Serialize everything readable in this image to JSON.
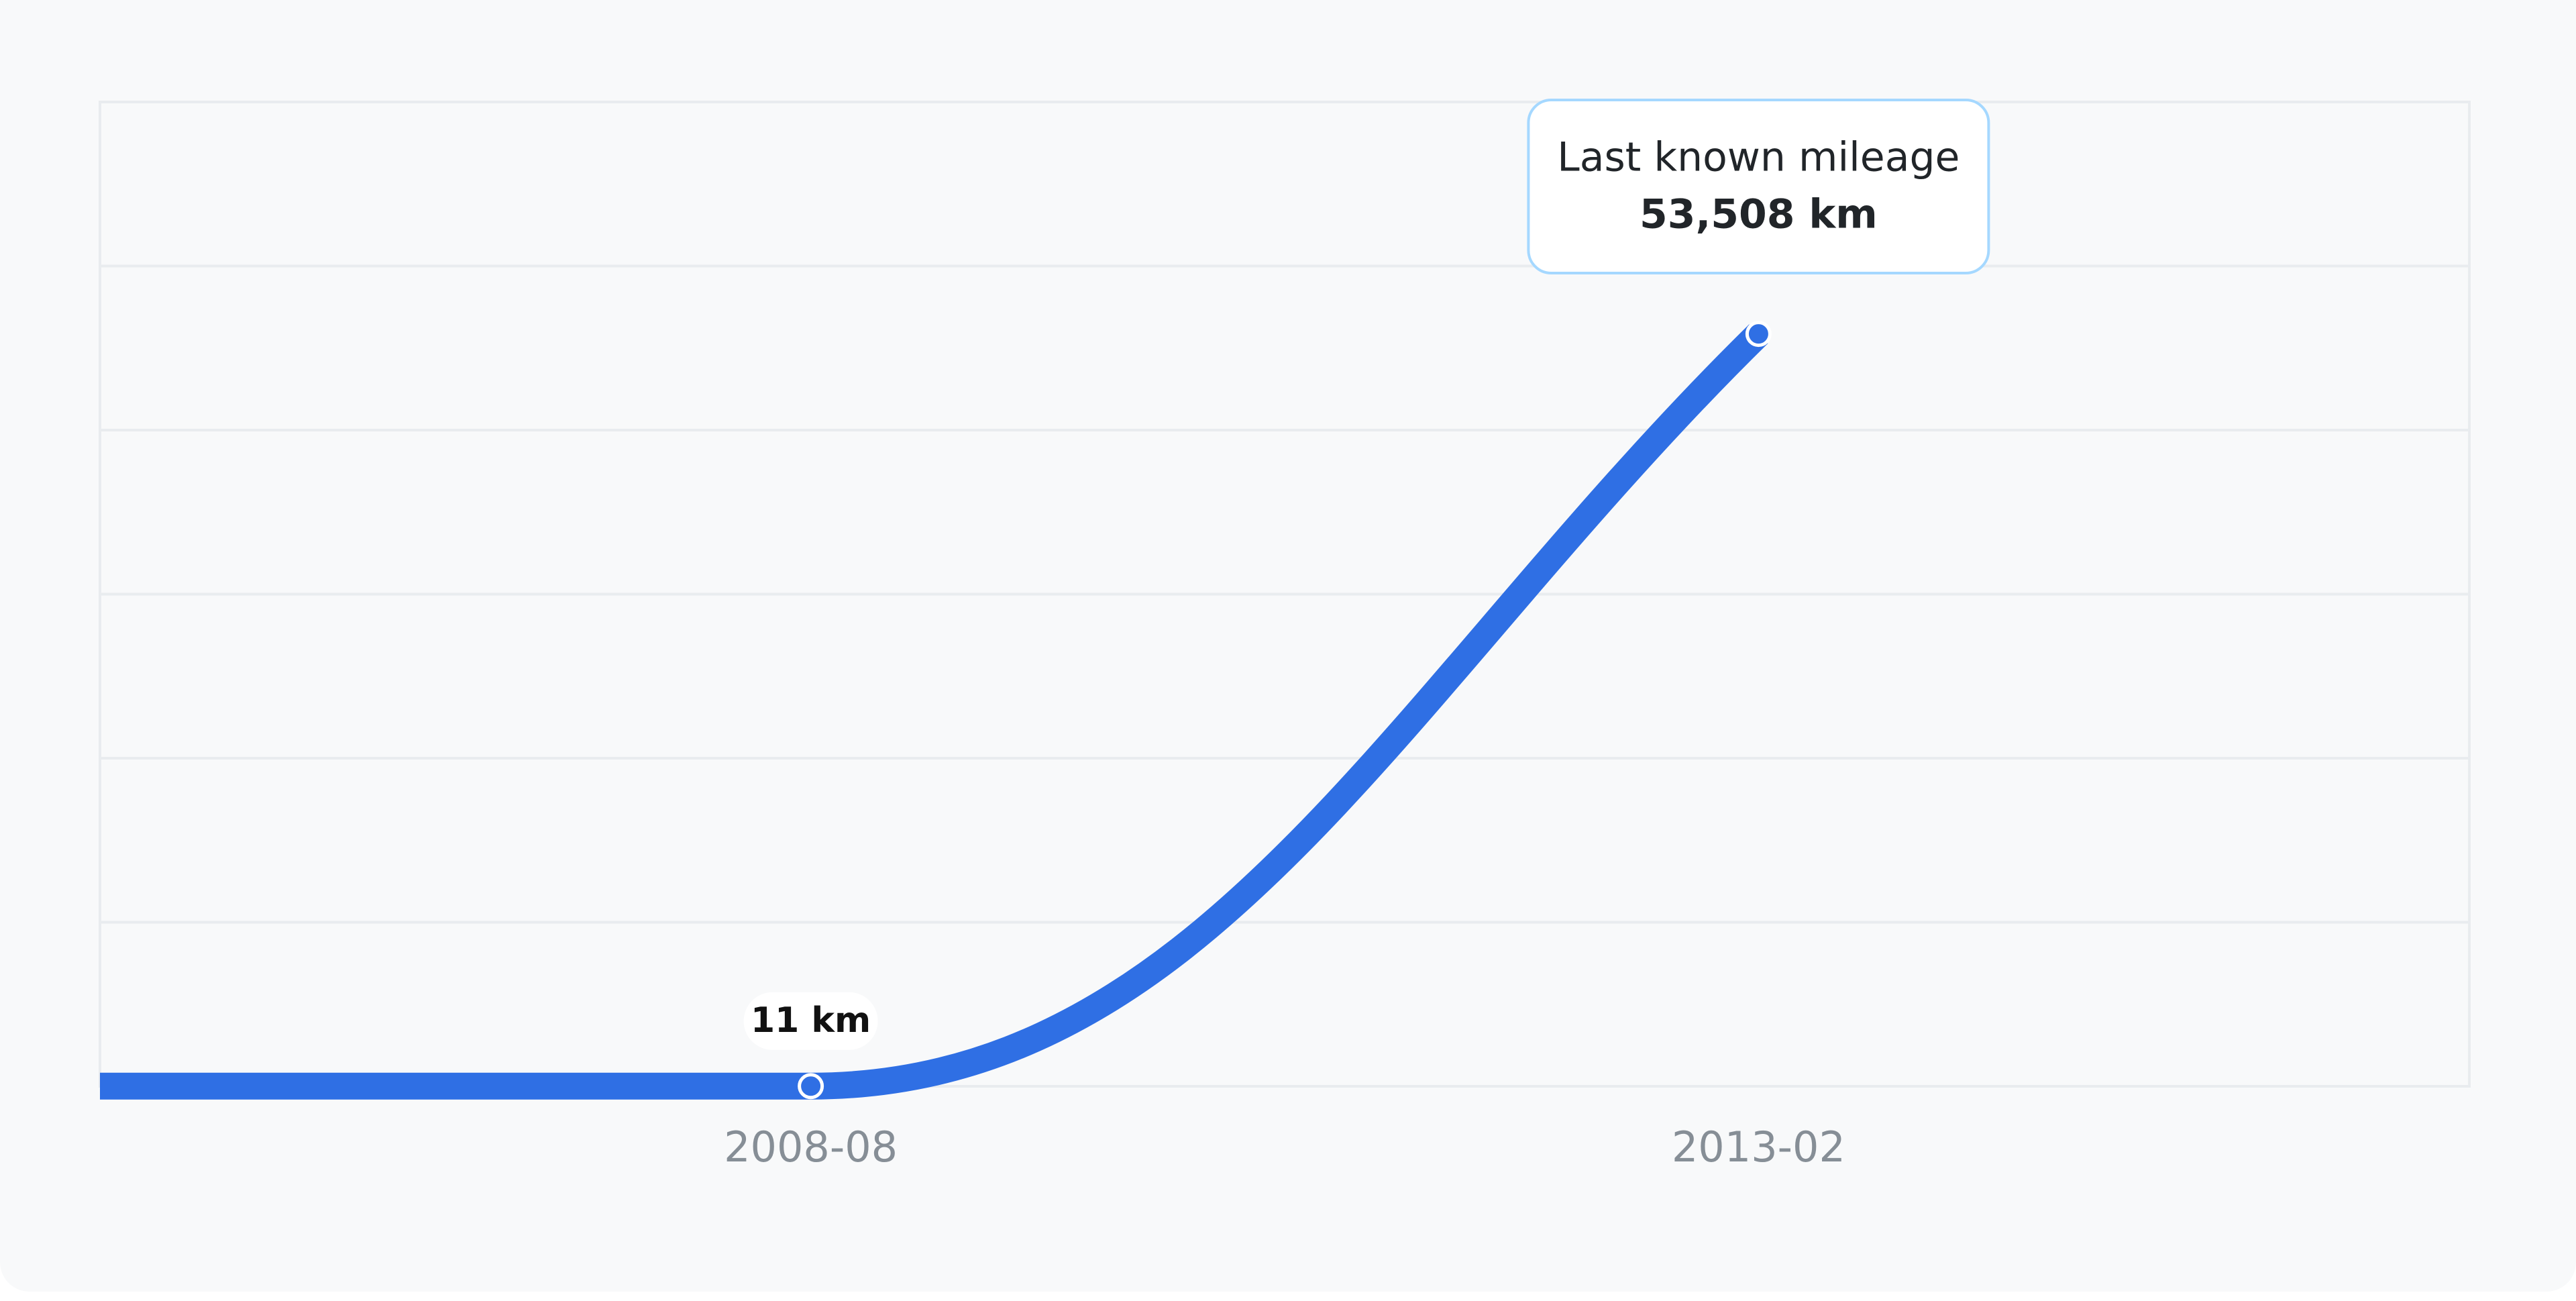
{
  "chart_data": {
    "type": "line",
    "categories": [
      "2008-08",
      "2013-02"
    ],
    "series": [
      {
        "color": "#2f6fe4",
        "values": [
          11,
          53508
        ],
        "value_labels": [
          "11 km",
          "53,508 km"
        ]
      }
    ],
    "ylim": [
      0,
      70000
    ],
    "grid": true,
    "annotation": "Last known mileage"
  }
}
